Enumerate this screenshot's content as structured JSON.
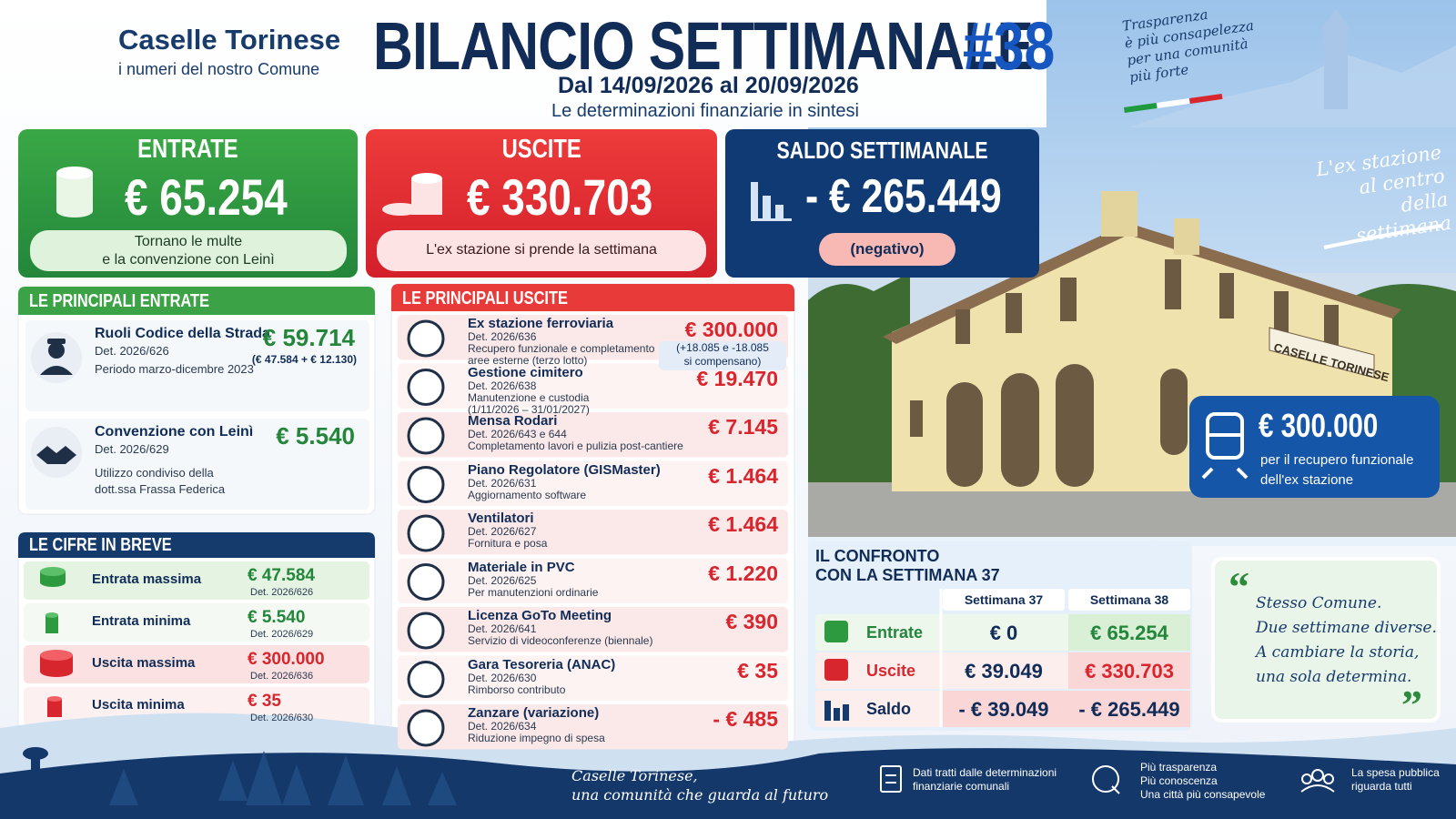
{
  "header": {
    "brand": "Caselle Torinese",
    "tagline": "i numeri del nostro Comune",
    "title": "BILANCIO SETTIMANALE",
    "number": "#38",
    "period": "Dal 14/09/2026 al 20/09/2026",
    "subtitle": "Le determinazioni finanziarie in sintesi",
    "motto": [
      "Trasparenza",
      "è più consapelezza",
      "per una comunità",
      "più forte"
    ]
  },
  "summary": {
    "entrate": {
      "label": "ENTRATE",
      "amount": "€ 65.254",
      "note": [
        "Tornano le multe",
        "e la convenzione con Leinì"
      ]
    },
    "uscite": {
      "label": "USCITE",
      "amount": "€ 330.703",
      "note": [
        "L'ex stazione si prende la settimana"
      ]
    },
    "saldo": {
      "label": "SALDO SETTIMANALE",
      "amount": "- € 265.449",
      "note": [
        "(negativo)"
      ]
    }
  },
  "photo": {
    "caption": [
      "L'ex stazione",
      "al centro",
      "della settimana"
    ],
    "sign": "CASELLE TORINESE",
    "badge": {
      "amount": "€ 300.000",
      "text": [
        "per il recupero funzionale",
        "dell'ex stazione"
      ]
    }
  },
  "entrate": {
    "title": "LE PRINCIPALI ENTRATE",
    "items": [
      {
        "name": "Ruoli Codice della Strada",
        "det": "Det. 2026/626",
        "desc": [
          "Periodo marzo-dicembre 2023"
        ],
        "amount": "€ 59.714",
        "detail": [
          "(€ 47.584 + € 12.130)"
        ]
      },
      {
        "name": "Convenzione con Leinì",
        "det": "Det. 2026/629",
        "desc": [
          "Utilizzo condiviso della",
          "dott.ssa Frassa Federica"
        ],
        "amount": "€ 5.540"
      }
    ]
  },
  "uscite": {
    "title": "LE PRINCIPALI USCITE",
    "items": [
      {
        "name": "Ex stazione ferroviaria",
        "det": "Det. 2026/636",
        "desc": [
          "Recupero funzionale e completamento",
          "aree esterne (terzo lotto)"
        ],
        "amount": "€ 300.000",
        "detail": [
          "(+18.085 e -18.085",
          "si compensano)"
        ]
      },
      {
        "name": "Gestione cimitero",
        "det": "Det. 2026/638",
        "desc": [
          "Manutenzione e custodia",
          "(1/11/2026 – 31/01/2027)"
        ],
        "amount": "€ 19.470"
      },
      {
        "name": "Mensa Rodari",
        "det": "Det. 2026/643 e 644",
        "desc": [
          "Completamento lavori e pulizia post-cantiere"
        ],
        "amount": "€ 7.145"
      },
      {
        "name": "Piano Regolatore (GISMaster)",
        "det": "Det. 2026/631",
        "desc": [
          "Aggiornamento software"
        ],
        "amount": "€ 1.464"
      },
      {
        "name": "Ventilatori",
        "det": "Det. 2026/627",
        "desc": [
          "Fornitura e posa"
        ],
        "amount": "€ 1.464"
      },
      {
        "name": "Materiale in PVC",
        "det": "Det. 2026/625",
        "desc": [
          "Per manutenzioni ordinarie"
        ],
        "amount": "€ 1.220"
      },
      {
        "name": "Licenza GoTo Meeting",
        "det": "Det. 2026/641",
        "desc": [
          "Servizio di videoconferenze (biennale)"
        ],
        "amount": "€ 390"
      },
      {
        "name": "Gara Tesoreria (ANAC)",
        "det": "Det. 2026/630",
        "desc": [
          "Rimborso contributo"
        ],
        "amount": "€ 35"
      },
      {
        "name": "Zanzare (variazione)",
        "det": "Det. 2026/634",
        "desc": [
          "Riduzione impegno di spesa"
        ],
        "amount": "- € 485"
      }
    ]
  },
  "cifre": {
    "title": "LE CIFRE IN BREVE",
    "rows": [
      {
        "label": "Entrata massima",
        "amount": "€ 47.584",
        "det": "Det. 2026/626"
      },
      {
        "label": "Entrata minima",
        "amount": "€ 5.540",
        "det": "Det. 2026/629"
      },
      {
        "label": "Uscita massima",
        "amount": "€ 300.000",
        "det": "Det. 2026/636"
      },
      {
        "label": "Uscita minima",
        "amount": "€ 35",
        "det": "Det. 2026/630"
      }
    ]
  },
  "confronto": {
    "title": [
      "IL CONFRONTO",
      "CON LA SETTIMANA 37"
    ],
    "columns": [
      "Settimana 37",
      "Settimana 38"
    ],
    "rows": [
      {
        "label": "Entrate",
        "values": [
          "€ 0",
          "€ 65.254"
        ]
      },
      {
        "label": "Uscite",
        "values": [
          "€ 39.049",
          "€ 330.703"
        ]
      },
      {
        "label": "Saldo",
        "values": [
          "- € 39.049",
          "- € 265.449"
        ]
      }
    ]
  },
  "quote": [
    "Stesso Comune.",
    "Due settimane diverse.",
    "A cambiare la storia,",
    "una sola determina."
  ],
  "footer": {
    "slogan": [
      "Caselle Torinese,",
      "una comunità che guarda al futuro"
    ],
    "notes": [
      [
        "Dati tratti dalle determinazioni",
        "finanziarie comunali"
      ],
      [
        "Più trasparenza",
        "Più conoscenza",
        "Una città più consapevole"
      ],
      [
        "La spesa pubblica",
        "riguarda tutti"
      ]
    ]
  }
}
